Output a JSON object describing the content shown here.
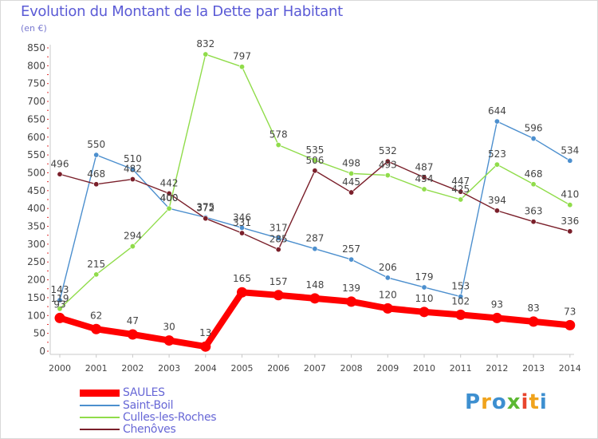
{
  "title": "Evolution du Montant de la Dette par Habitant",
  "subtitle": "(en €)",
  "chart_data": {
    "type": "line",
    "x": [
      "2000",
      "2001",
      "2002",
      "2003",
      "2004",
      "2005",
      "2006",
      "2007",
      "2008",
      "2009",
      "2010",
      "2011",
      "2012",
      "2013",
      "2014"
    ],
    "ylim": [
      0,
      850
    ],
    "yticks": [
      0,
      50,
      100,
      150,
      200,
      250,
      300,
      350,
      400,
      450,
      500,
      550,
      600,
      650,
      700,
      750,
      800,
      850
    ],
    "grid": false,
    "series": [
      {
        "name": "SAULES",
        "color": "#ff0000",
        "values": [
          93,
          62,
          47,
          30,
          13,
          165,
          157,
          148,
          139,
          120,
          110,
          102,
          93,
          83,
          73
        ]
      },
      {
        "name": "Saint-Boil",
        "color": "#4c8fce",
        "values": [
          143,
          550,
          510,
          400,
          375,
          346,
          317,
          287,
          257,
          206,
          179,
          153,
          644,
          596,
          534
        ]
      },
      {
        "name": "Culles-les-Roches",
        "color": "#90dc4a",
        "values": [
          119,
          215,
          294,
          400,
          832,
          797,
          578,
          535,
          498,
          493,
          454,
          425,
          523,
          468,
          410
        ]
      },
      {
        "name": "Chenôves",
        "color": "#7a1f2a",
        "values": [
          496,
          468,
          482,
          442,
          372,
          331,
          285,
          506,
          445,
          532,
          487,
          447,
          394,
          363,
          336
        ]
      }
    ]
  },
  "legend": [
    {
      "label": "SAULES"
    },
    {
      "label": "Saint-Boil"
    },
    {
      "label": "Culles-les-Roches"
    },
    {
      "label": "Chenôves"
    }
  ],
  "logo": {
    "letters": [
      "P",
      "r",
      "o",
      "x",
      "i",
      "t",
      "i"
    ],
    "colors": [
      "#3d8fd0",
      "#f0a31c",
      "#3d8fd0",
      "#5cb832",
      "#e8452e",
      "#f0a31c",
      "#3d8fd0"
    ]
  }
}
